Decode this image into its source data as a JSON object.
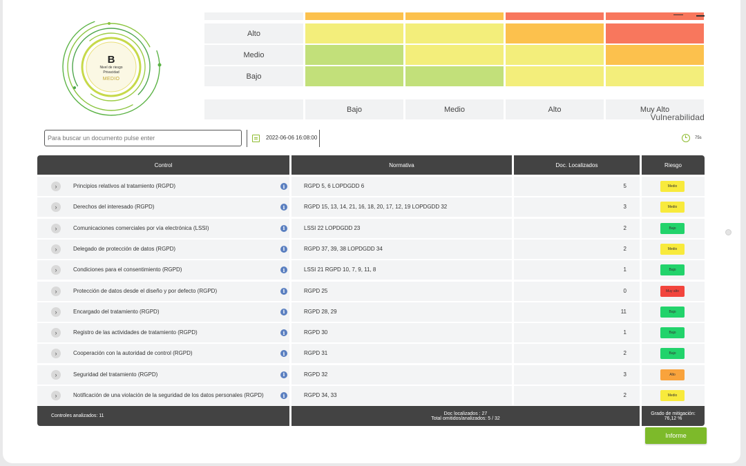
{
  "gauge": {
    "letter": "B",
    "line1": "Nivel de riesgo",
    "line2": "Privacidad",
    "level": "MEDIO"
  },
  "heatmap": {
    "rows": [
      {
        "label": "",
        "colors": [
          "#fcc14d",
          "#fcc14d",
          "#f8775d",
          "#f8775d"
        ]
      },
      {
        "label": "Alto",
        "colors": [
          "#f3ee7b",
          "#f3ee7b",
          "#fcc14d",
          "#f8775d"
        ]
      },
      {
        "label": "Medio",
        "colors": [
          "#c2e07a",
          "#f3ee7b",
          "#f3ee7b",
          "#fcc14d"
        ]
      },
      {
        "label": "Bajo",
        "colors": [
          "#c2e07a",
          "#c2e07a",
          "#f3ee7b",
          "#f3ee7b"
        ]
      }
    ],
    "columns": [
      "Bajo",
      "Medio",
      "Alto",
      "Muy Alto"
    ],
    "x_axis_label": "Vulnerabilidad"
  },
  "search": {
    "placeholder": "Para buscar un documento pulse enter"
  },
  "toolbar": {
    "datetime": "2022-06-06 16:08:00",
    "elapsed": "75s"
  },
  "table": {
    "headers": [
      "Control",
      "Normativa",
      "Doc. Localizados",
      "Riesgo"
    ],
    "rows": [
      {
        "control": "Principios relativos al tratamiento (RGPD)",
        "normativa": "RGPD 5, 6  LOPDGDD 6",
        "docs": "5",
        "risk": "Medio"
      },
      {
        "control": "Derechos del interesado (RGPD)",
        "normativa": "RGPD 15, 13, 14, 21, 16, 18, 20, 17, 12, 19  LOPDGDD 32",
        "docs": "3",
        "risk": "Medio"
      },
      {
        "control": "Comunicaciones comerciales por vía electrónica (LSSI)",
        "normativa": "LSSI 22  LOPDGDD 23",
        "docs": "2",
        "risk": "Bajo"
      },
      {
        "control": "Delegado de protección de datos (RGPD)",
        "normativa": "RGPD 37, 39, 38  LOPDGDD 34",
        "docs": "2",
        "risk": "Medio"
      },
      {
        "control": "Condiciones para el consentimiento (RGPD)",
        "normativa": "LSSI 21  RGPD 10, 7, 9, 11, 8",
        "docs": "1",
        "risk": "Bajo"
      },
      {
        "control": "Protección de datos desde el diseño y por defecto (RGPD)",
        "normativa": "RGPD 25",
        "docs": "0",
        "risk": "Muy alto"
      },
      {
        "control": "Encargado del tratamiento (RGPD)",
        "normativa": "RGPD 28, 29",
        "docs": "11",
        "risk": "Bajo"
      },
      {
        "control": "Registro de las actividades de tratamiento (RGPD)",
        "normativa": "RGPD 30",
        "docs": "1",
        "risk": "Bajo"
      },
      {
        "control": "Cooperación con la autoridad de control (RGPD)",
        "normativa": "RGPD 31",
        "docs": "2",
        "risk": "Bajo"
      },
      {
        "control": "Seguridad del tratamiento (RGPD)",
        "normativa": "RGPD 32",
        "docs": "3",
        "risk": "Alto"
      },
      {
        "control": "Notificación de una violación de la seguridad de los datos personales (RGPD)",
        "normativa": "RGPD 34, 33",
        "docs": "2",
        "risk": "Medio"
      }
    ],
    "risk_colors": {
      "Bajo": "#22d36b",
      "Medio": "#f8ea3c",
      "Alto": "#f9a33c",
      "Muy alto": "#f2453d"
    },
    "footer": {
      "analyzed": "Controles analizados: 11",
      "doc_localizados": "Doc localizados : 27",
      "omitidos": "Total omitidos/analizados: 5 / 32",
      "mitigation_label": "Grado de mitigación:",
      "mitigation_value": "76,12 %"
    }
  },
  "report_button": "Informe"
}
